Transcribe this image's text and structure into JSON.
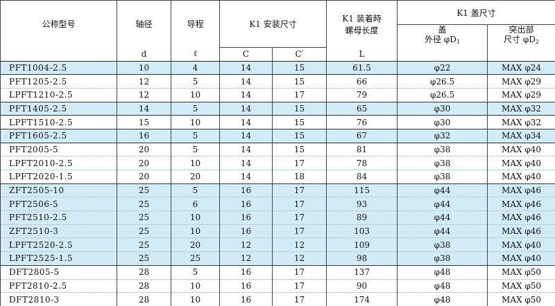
{
  "header": {
    "model": "公称型号",
    "shaft_dia": "轴径",
    "lead": "导程",
    "k1_mount": "K1 安装尺寸",
    "k1_nut_len_line1": "K1 装着時",
    "k1_nut_len_line2": "螺母长度",
    "k1_cover": "K1 盖尺寸",
    "cover_od_line1": "盖",
    "cover_od_line2": "外径 φD",
    "cover_od_sub": "1",
    "protrude_line1": "突出部",
    "protrude_line2": "尺寸 φD",
    "protrude_sub": "2",
    "unit_d": "d",
    "unit_l": "ℓ",
    "unit_c": "C",
    "unit_c2": "C′",
    "unit_L": "L"
  },
  "groups": [
    {
      "highlight": true,
      "rows": [
        [
          "PFT1004-2.5",
          "10",
          "4",
          "14",
          "15",
          "61.5",
          "φ22",
          "MAX φ24"
        ]
      ]
    },
    {
      "highlight": false,
      "rows": [
        [
          "PFT1205-2.5",
          "12",
          "5",
          "14",
          "15",
          "66",
          "φ26.5",
          "MAX φ29"
        ],
        [
          "LPFT1210-2.5",
          "12",
          "10",
          "14",
          "17",
          "79",
          "φ26.5",
          "MAX φ29"
        ]
      ]
    },
    {
      "highlight": true,
      "rows": [
        [
          "PFT1405-2.5",
          "14",
          "5",
          "14",
          "15",
          "65",
          "φ30",
          "MAX φ32"
        ]
      ]
    },
    {
      "highlight": false,
      "rows": [
        [
          "LPFT1510-2.5",
          "15",
          "10",
          "14",
          "15",
          "76",
          "φ30",
          "MAX φ32"
        ]
      ]
    },
    {
      "highlight": true,
      "rows": [
        [
          "PFT1605-2.5",
          "16",
          "5",
          "14",
          "15",
          "67",
          "φ32",
          "MAX φ34"
        ]
      ]
    },
    {
      "highlight": false,
      "rows": [
        [
          "PFT2005-5",
          "20",
          "5",
          "14",
          "15",
          "81",
          "φ38",
          "MAX φ40"
        ],
        [
          "LPFT2010-2.5",
          "20",
          "10",
          "14",
          "17",
          "78",
          "φ38",
          "MAX φ40"
        ],
        [
          "LPFT2020-1.5",
          "20",
          "20",
          "14",
          "18",
          "84",
          "φ38",
          "MAX φ40"
        ]
      ]
    },
    {
      "highlight": true,
      "rows": [
        [
          "ZFT2505-10",
          "25",
          "5",
          "16",
          "17",
          "115",
          "φ44",
          "MAX φ46"
        ],
        [
          "PFT2506-5",
          "25",
          "6",
          "16",
          "17",
          "93",
          "φ44",
          "MAX φ46"
        ],
        [
          "PFT2510-2.5",
          "25",
          "10",
          "16",
          "17",
          "89",
          "φ44",
          "MAX φ46"
        ],
        [
          "ZFT2510-3",
          "25",
          "10",
          "16",
          "17",
          "103",
          "φ44",
          "MAX φ46"
        ],
        [
          "LPFT2520-2.5",
          "25",
          "20",
          "12",
          "12",
          "109",
          "φ38",
          "MAX φ40"
        ],
        [
          "LPFT2525-1.5",
          "25",
          "25",
          "12",
          "12",
          "98",
          "φ38",
          "MAX φ40"
        ]
      ]
    },
    {
      "highlight": false,
      "rows": [
        [
          "DFT2805-5",
          "28",
          "5",
          "16",
          "17",
          "137",
          "φ48",
          "MAX φ50"
        ],
        [
          "PFT2810-2.5",
          "28",
          "10",
          "16",
          "17",
          "90",
          "φ48",
          "MAX φ50"
        ],
        [
          "DFT2810-3",
          "28",
          "10",
          "16",
          "17",
          "174",
          "φ48",
          "MAX φ50"
        ]
      ]
    }
  ]
}
